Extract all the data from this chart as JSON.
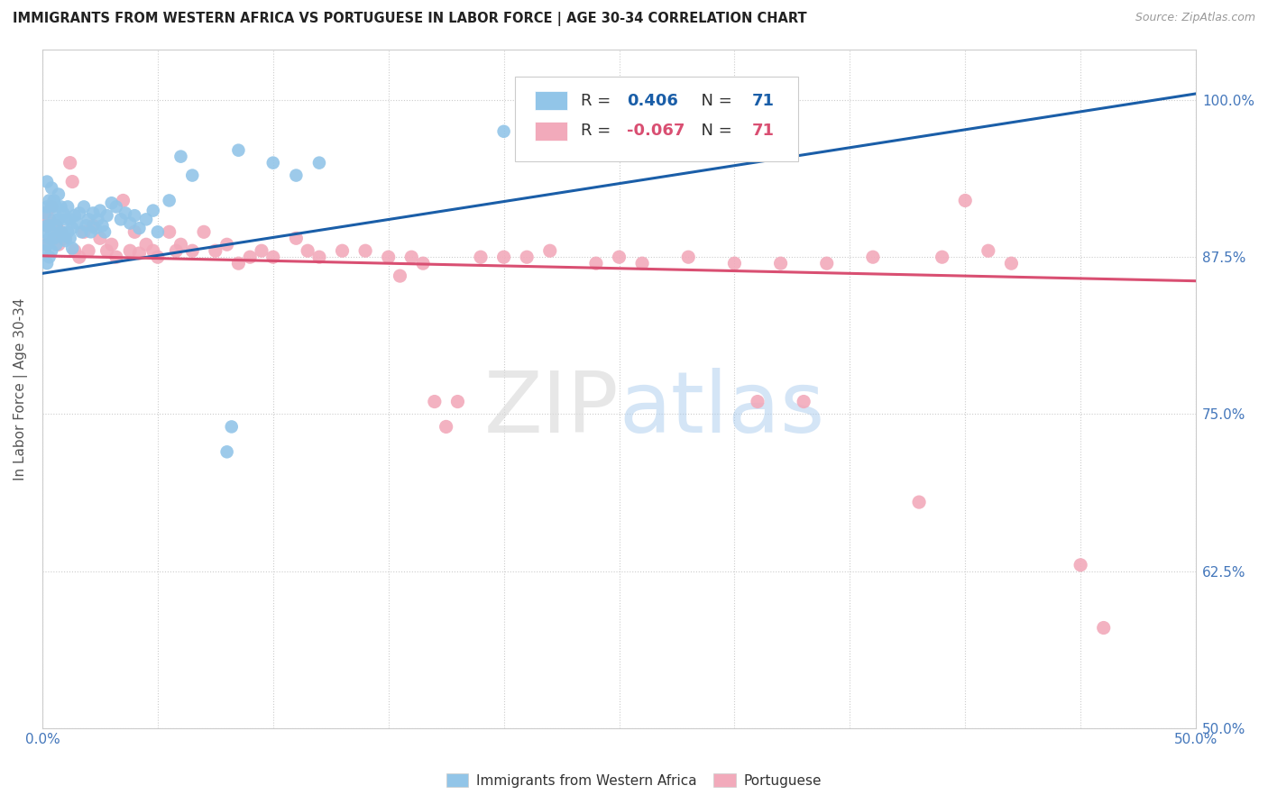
{
  "title": "IMMIGRANTS FROM WESTERN AFRICA VS PORTUGUESE IN LABOR FORCE | AGE 30-34 CORRELATION CHART",
  "source": "Source: ZipAtlas.com",
  "ylabel_label": "In Labor Force | Age 30-34",
  "legend_labels": [
    "Immigrants from Western Africa",
    "Portuguese"
  ],
  "r_blue": "0.406",
  "r_pink": "-0.067",
  "n": "71",
  "blue_color": "#92C5E8",
  "pink_color": "#F2AABB",
  "trend_blue": "#1A5EA8",
  "trend_pink": "#D94F72",
  "xmin": 0.0,
  "xmax": 0.5,
  "ymin": 0.5,
  "ymax": 1.04,
  "yticks": [
    0.5,
    0.625,
    0.75,
    0.875,
    1.0
  ],
  "ytick_labels": [
    "50.0%",
    "62.5%",
    "75.0%",
    "87.5%",
    "100.0%"
  ],
  "blue_trend_x": [
    0.0,
    0.5
  ],
  "blue_trend_y": [
    0.862,
    1.005
  ],
  "pink_trend_x": [
    0.0,
    0.5
  ],
  "pink_trend_y": [
    0.876,
    0.856
  ],
  "blue_scatter": [
    [
      0.001,
      0.91
    ],
    [
      0.001,
      0.895
    ],
    [
      0.001,
      0.88
    ],
    [
      0.002,
      0.935
    ],
    [
      0.002,
      0.915
    ],
    [
      0.002,
      0.9
    ],
    [
      0.002,
      0.885
    ],
    [
      0.002,
      0.87
    ],
    [
      0.003,
      0.92
    ],
    [
      0.003,
      0.9
    ],
    [
      0.003,
      0.89
    ],
    [
      0.003,
      0.875
    ],
    [
      0.004,
      0.93
    ],
    [
      0.004,
      0.915
    ],
    [
      0.004,
      0.895
    ],
    [
      0.004,
      0.88
    ],
    [
      0.005,
      0.92
    ],
    [
      0.005,
      0.905
    ],
    [
      0.005,
      0.89
    ],
    [
      0.006,
      0.915
    ],
    [
      0.006,
      0.9
    ],
    [
      0.006,
      0.885
    ],
    [
      0.007,
      0.925
    ],
    [
      0.007,
      0.905
    ],
    [
      0.008,
      0.915
    ],
    [
      0.008,
      0.895
    ],
    [
      0.009,
      0.91
    ],
    [
      0.009,
      0.892
    ],
    [
      0.01,
      0.905
    ],
    [
      0.01,
      0.888
    ],
    [
      0.011,
      0.915
    ],
    [
      0.011,
      0.895
    ],
    [
      0.012,
      0.905
    ],
    [
      0.012,
      0.89
    ],
    [
      0.013,
      0.898
    ],
    [
      0.013,
      0.882
    ],
    [
      0.014,
      0.908
    ],
    [
      0.015,
      0.902
    ],
    [
      0.016,
      0.91
    ],
    [
      0.017,
      0.895
    ],
    [
      0.018,
      0.915
    ],
    [
      0.019,
      0.9
    ],
    [
      0.02,
      0.905
    ],
    [
      0.021,
      0.895
    ],
    [
      0.022,
      0.91
    ],
    [
      0.023,
      0.898
    ],
    [
      0.024,
      0.905
    ],
    [
      0.025,
      0.912
    ],
    [
      0.026,
      0.9
    ],
    [
      0.027,
      0.895
    ],
    [
      0.028,
      0.908
    ],
    [
      0.03,
      0.918
    ],
    [
      0.032,
      0.915
    ],
    [
      0.034,
      0.905
    ],
    [
      0.036,
      0.91
    ],
    [
      0.038,
      0.902
    ],
    [
      0.04,
      0.908
    ],
    [
      0.042,
      0.898
    ],
    [
      0.045,
      0.905
    ],
    [
      0.048,
      0.912
    ],
    [
      0.05,
      0.895
    ],
    [
      0.055,
      0.92
    ],
    [
      0.06,
      0.955
    ],
    [
      0.065,
      0.94
    ],
    [
      0.08,
      0.72
    ],
    [
      0.082,
      0.74
    ],
    [
      0.085,
      0.96
    ],
    [
      0.1,
      0.95
    ],
    [
      0.11,
      0.94
    ],
    [
      0.12,
      0.95
    ],
    [
      0.2,
      0.975
    ]
  ],
  "pink_scatter": [
    [
      0.001,
      0.91
    ],
    [
      0.002,
      0.9
    ],
    [
      0.002,
      0.885
    ],
    [
      0.003,
      0.905
    ],
    [
      0.004,
      0.915
    ],
    [
      0.005,
      0.89
    ],
    [
      0.006,
      0.9
    ],
    [
      0.007,
      0.885
    ],
    [
      0.008,
      0.895
    ],
    [
      0.01,
      0.89
    ],
    [
      0.012,
      0.95
    ],
    [
      0.013,
      0.935
    ],
    [
      0.014,
      0.88
    ],
    [
      0.016,
      0.875
    ],
    [
      0.018,
      0.895
    ],
    [
      0.02,
      0.88
    ],
    [
      0.022,
      0.9
    ],
    [
      0.025,
      0.89
    ],
    [
      0.028,
      0.88
    ],
    [
      0.03,
      0.885
    ],
    [
      0.032,
      0.875
    ],
    [
      0.035,
      0.92
    ],
    [
      0.038,
      0.88
    ],
    [
      0.04,
      0.895
    ],
    [
      0.042,
      0.878
    ],
    [
      0.045,
      0.885
    ],
    [
      0.048,
      0.88
    ],
    [
      0.05,
      0.875
    ],
    [
      0.055,
      0.895
    ],
    [
      0.058,
      0.88
    ],
    [
      0.06,
      0.885
    ],
    [
      0.065,
      0.88
    ],
    [
      0.07,
      0.895
    ],
    [
      0.075,
      0.88
    ],
    [
      0.08,
      0.885
    ],
    [
      0.085,
      0.87
    ],
    [
      0.09,
      0.875
    ],
    [
      0.095,
      0.88
    ],
    [
      0.1,
      0.875
    ],
    [
      0.11,
      0.89
    ],
    [
      0.115,
      0.88
    ],
    [
      0.12,
      0.875
    ],
    [
      0.13,
      0.88
    ],
    [
      0.14,
      0.88
    ],
    [
      0.15,
      0.875
    ],
    [
      0.155,
      0.86
    ],
    [
      0.16,
      0.875
    ],
    [
      0.165,
      0.87
    ],
    [
      0.17,
      0.76
    ],
    [
      0.175,
      0.74
    ],
    [
      0.18,
      0.76
    ],
    [
      0.19,
      0.875
    ],
    [
      0.2,
      0.875
    ],
    [
      0.21,
      0.875
    ],
    [
      0.22,
      0.88
    ],
    [
      0.24,
      0.87
    ],
    [
      0.25,
      0.875
    ],
    [
      0.26,
      0.87
    ],
    [
      0.28,
      0.875
    ],
    [
      0.3,
      0.87
    ],
    [
      0.31,
      0.76
    ],
    [
      0.32,
      0.87
    ],
    [
      0.33,
      0.76
    ],
    [
      0.34,
      0.87
    ],
    [
      0.36,
      0.875
    ],
    [
      0.38,
      0.68
    ],
    [
      0.39,
      0.875
    ],
    [
      0.4,
      0.92
    ],
    [
      0.41,
      0.88
    ],
    [
      0.42,
      0.87
    ],
    [
      0.45,
      0.63
    ],
    [
      0.46,
      0.58
    ]
  ]
}
